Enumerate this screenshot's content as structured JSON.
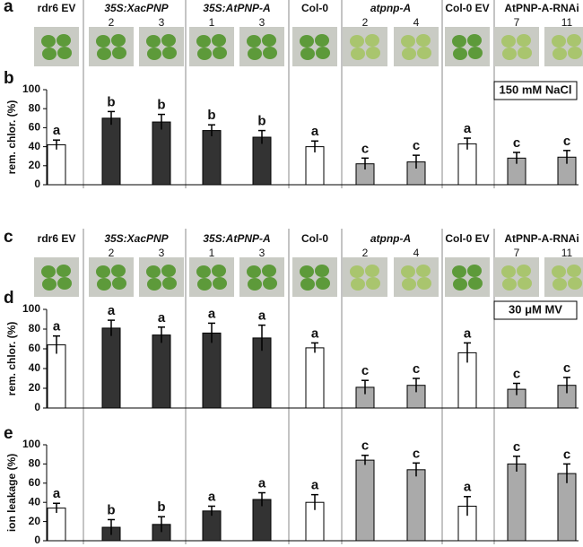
{
  "panel_a": {
    "label": "a",
    "columns": [
      {
        "label": "rdr6 EV"
      },
      {
        "label": "35S:XacPNP",
        "lines": [
          "2",
          "3"
        ],
        "italic": true
      },
      {
        "label": "35S:AtPNP-A",
        "lines": [
          "1",
          "3"
        ],
        "italic": true
      },
      {
        "label": "Col-0"
      },
      {
        "label": "atpnp-A",
        "lines": [
          "2",
          "4"
        ],
        "italic": true
      },
      {
        "label": "Col-0 EV"
      },
      {
        "label": "AtPNP-A-RNAi",
        "lines": [
          "7",
          "11"
        ]
      }
    ]
  },
  "panel_c": {
    "label": "c",
    "columns": [
      {
        "label": "rdr6 EV"
      },
      {
        "label": "35S:XacPNP",
        "lines": [
          "2",
          "3"
        ],
        "italic": true
      },
      {
        "label": "35S:AtPNP-A",
        "lines": [
          "1",
          "3"
        ],
        "italic": true
      },
      {
        "label": "Col-0"
      },
      {
        "label": "atpnp-A",
        "lines": [
          "2",
          "4"
        ],
        "italic": true
      },
      {
        "label": "Col-0 EV"
      },
      {
        "label": "AtPNP-A-RNAi",
        "lines": [
          "7",
          "11"
        ]
      }
    ]
  },
  "chart_data": [
    {
      "type": "bar",
      "panel_label": "b",
      "y_label": "rem. chlor. (%)",
      "annotation": "150 mM NaCl",
      "values": [
        42,
        70,
        66,
        57,
        50,
        40,
        22,
        24,
        43,
        28,
        29
      ],
      "errors": [
        5,
        7,
        8,
        6,
        7,
        6,
        6,
        7,
        6,
        6,
        7
      ],
      "letters": [
        "a",
        "b",
        "b",
        "b",
        "b",
        "a",
        "c",
        "c",
        "a",
        "c",
        "c"
      ],
      "colors": [
        "#ffffff",
        "#333333",
        "#333333",
        "#333333",
        "#333333",
        "#ffffff",
        "#aaaaaa",
        "#aaaaaa",
        "#ffffff",
        "#aaaaaa",
        "#aaaaaa"
      ],
      "ylim": [
        0,
        100
      ],
      "yticks": [
        0,
        20,
        40,
        60,
        80,
        100
      ]
    },
    {
      "type": "bar",
      "panel_label": "d",
      "y_label": "rem. chlor. (%)",
      "annotation": "30 μM MV",
      "values": [
        64,
        81,
        74,
        76,
        71,
        61,
        21,
        23,
        56,
        19,
        23
      ],
      "errors": [
        9,
        8,
        8,
        10,
        13,
        5,
        7,
        7,
        10,
        6,
        8
      ],
      "letters": [
        "a",
        "a",
        "a",
        "a",
        "a",
        "a",
        "c",
        "c",
        "a",
        "c",
        "c"
      ],
      "colors": [
        "#ffffff",
        "#333333",
        "#333333",
        "#333333",
        "#333333",
        "#ffffff",
        "#aaaaaa",
        "#aaaaaa",
        "#ffffff",
        "#aaaaaa",
        "#aaaaaa"
      ],
      "ylim": [
        0,
        100
      ],
      "yticks": [
        0,
        20,
        40,
        60,
        80,
        100
      ]
    },
    {
      "type": "bar",
      "panel_label": "e",
      "y_label": "ion leakage (%)",
      "values": [
        34,
        14,
        17,
        31,
        43,
        40,
        84,
        74,
        36,
        80,
        70
      ],
      "errors": [
        5,
        8,
        8,
        5,
        7,
        8,
        5,
        7,
        10,
        8,
        10
      ],
      "letters": [
        "a",
        "b",
        "b",
        "a",
        "a",
        "a",
        "c",
        "c",
        "a",
        "c",
        "c"
      ],
      "colors": [
        "#ffffff",
        "#333333",
        "#333333",
        "#333333",
        "#333333",
        "#ffffff",
        "#aaaaaa",
        "#aaaaaa",
        "#ffffff",
        "#aaaaaa",
        "#aaaaaa"
      ],
      "ylim": [
        0,
        100
      ],
      "yticks": [
        0,
        20,
        40,
        60,
        80,
        100
      ]
    }
  ]
}
